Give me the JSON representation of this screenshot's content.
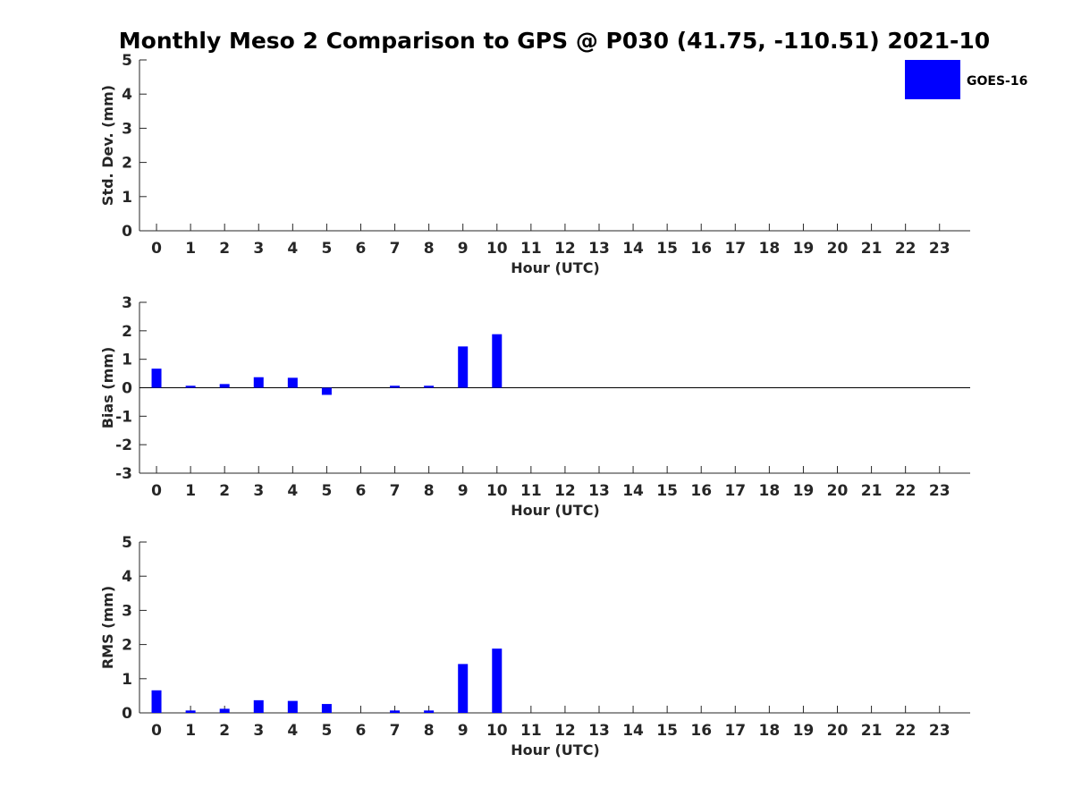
{
  "chart_data": {
    "title": "Monthly Meso 2 Comparison to GPS @ P030 (41.75, -110.51) 2021-10",
    "legend": {
      "label": "GOES-16",
      "color": "#0000ff",
      "placement": "top-right"
    },
    "series_color": "#0000ff",
    "panels": [
      {
        "type": "bar",
        "ylabel": "Std. Dev. (mm)",
        "xlabel": "Hour (UTC)",
        "ylim": [
          0,
          5
        ],
        "yticks": [
          0,
          1,
          2,
          3,
          4,
          5
        ],
        "categories": [
          0,
          1,
          2,
          3,
          4,
          5,
          6,
          7,
          8,
          9,
          10,
          11,
          12,
          13,
          14,
          15,
          16,
          17,
          18,
          19,
          20,
          21,
          22,
          23
        ],
        "values": [
          null,
          null,
          null,
          null,
          null,
          null,
          null,
          null,
          null,
          null,
          null,
          null,
          null,
          null,
          null,
          null,
          null,
          null,
          null,
          null,
          null,
          null,
          null,
          null
        ],
        "zero_line": false
      },
      {
        "type": "bar",
        "ylabel": "Bias (mm)",
        "xlabel": "Hour (UTC)",
        "ylim": [
          -3,
          3
        ],
        "yticks": [
          -3,
          -2,
          -1,
          0,
          1,
          2,
          3
        ],
        "categories": [
          0,
          1,
          2,
          3,
          4,
          5,
          6,
          7,
          8,
          9,
          10,
          11,
          12,
          13,
          14,
          15,
          16,
          17,
          18,
          19,
          20,
          21,
          22,
          23
        ],
        "values": [
          0.67,
          0.07,
          0.13,
          0.37,
          0.35,
          -0.25,
          null,
          0.07,
          0.07,
          1.45,
          1.88,
          null,
          null,
          null,
          null,
          null,
          null,
          null,
          null,
          null,
          null,
          null,
          null,
          null
        ],
        "zero_line": true
      },
      {
        "type": "bar",
        "ylabel": "RMS (mm)",
        "xlabel": "Hour (UTC)",
        "ylim": [
          0,
          5
        ],
        "yticks": [
          0,
          1,
          2,
          3,
          4,
          5
        ],
        "categories": [
          0,
          1,
          2,
          3,
          4,
          5,
          6,
          7,
          8,
          9,
          10,
          11,
          12,
          13,
          14,
          15,
          16,
          17,
          18,
          19,
          20,
          21,
          22,
          23
        ],
        "values": [
          0.66,
          0.07,
          0.12,
          0.37,
          0.35,
          0.26,
          null,
          0.07,
          0.07,
          1.43,
          1.88,
          null,
          null,
          null,
          null,
          null,
          null,
          null,
          null,
          null,
          null,
          null,
          null,
          null
        ],
        "zero_line": false
      }
    ]
  }
}
